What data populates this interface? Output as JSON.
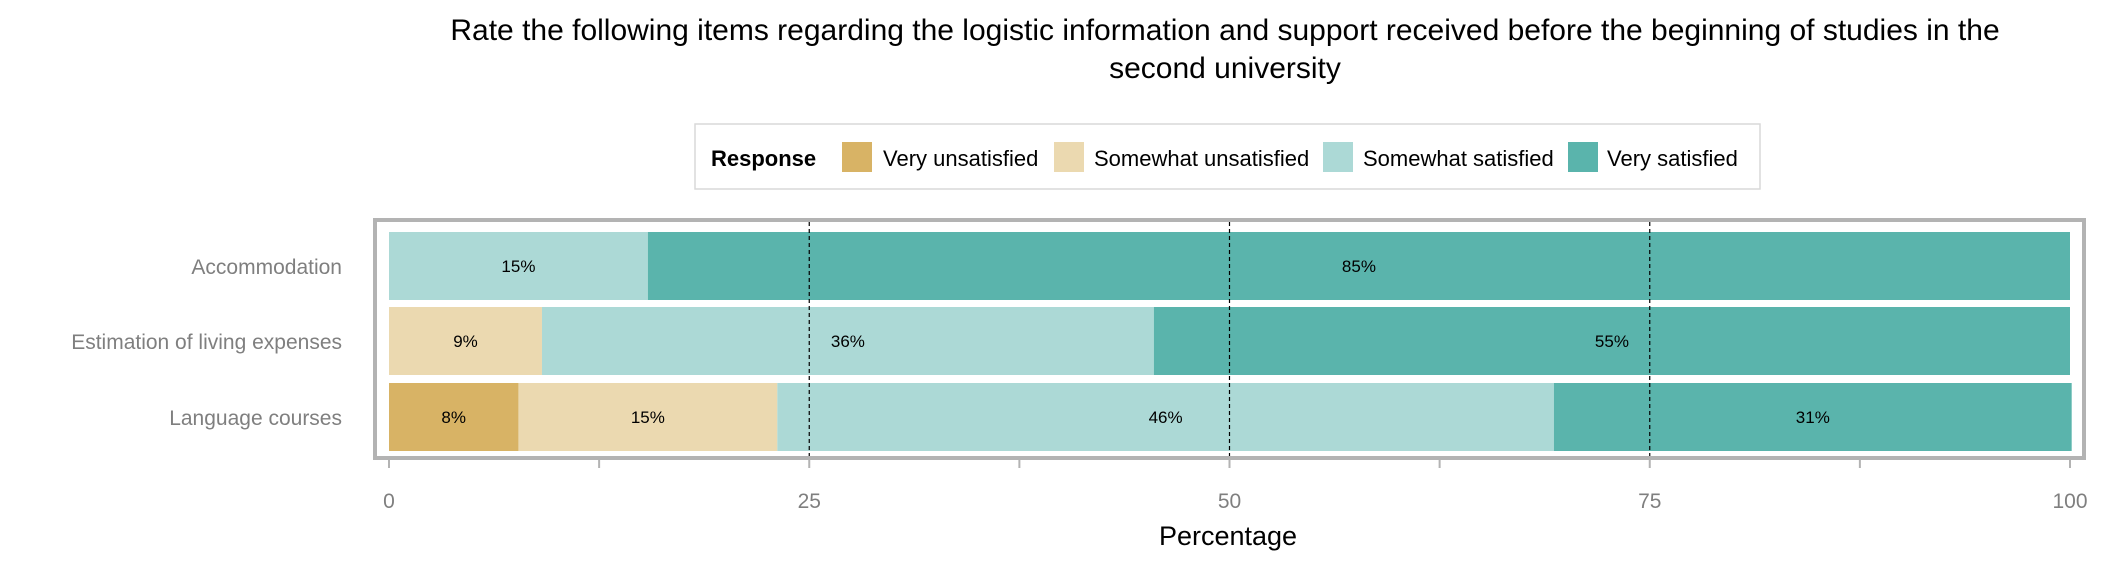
{
  "chart_data": {
    "type": "bar",
    "orientation": "horizontal",
    "stacked": true,
    "title": "Rate the following items regarding the logistic information and support received before the beginning of studies in the second university",
    "title_lines": [
      "Rate the following items regarding the logistic information and support received before the beginning of studies in the",
      "second university"
    ],
    "xlabel": "Percentage",
    "ylabel": "",
    "xlim": [
      0,
      100
    ],
    "xticks": [
      0,
      25,
      50,
      75,
      100
    ],
    "categories": [
      "Accommodation",
      "Estimation of living expenses",
      "Language courses"
    ],
    "legend": {
      "title": "Response",
      "placement": "top",
      "entries": [
        "Very unsatisfied",
        "Somewhat unsatisfied",
        "Somewhat satisfied",
        "Very satisfied"
      ]
    },
    "series": [
      {
        "name": "Very unsatisfied",
        "color": "#d8b365",
        "values": [
          0,
          0,
          7.7
        ]
      },
      {
        "name": "Somewhat unsatisfied",
        "color": "#ebd9b0",
        "values": [
          0,
          9.1,
          15.4
        ]
      },
      {
        "name": "Somewhat satisfied",
        "color": "#acd9d6",
        "values": [
          15.4,
          36.4,
          46.2
        ]
      },
      {
        "name": "Very satisfied",
        "color": "#5ab4ac",
        "values": [
          84.6,
          54.5,
          30.8
        ]
      }
    ],
    "data_labels": [
      [
        "",
        "",
        "15%",
        "85%"
      ],
      [
        "",
        "9%",
        "36%",
        "55%"
      ],
      [
        "8%",
        "15%",
        "46%",
        "31%"
      ]
    ],
    "reference_lines": [
      25,
      50,
      75
    ],
    "grid": false
  }
}
